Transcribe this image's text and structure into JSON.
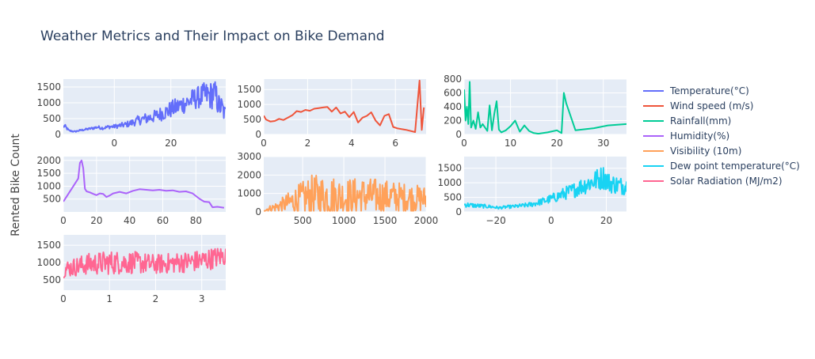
{
  "chart_data": {
    "type": "line",
    "title": "Weather Metrics and Their Impact on Bike Demand",
    "ylabel": "Rented Bike Count",
    "grid": true,
    "legend_placement": "right",
    "colors": {
      "plot_bg": "#e5ecf6",
      "grid": "#ffffff",
      "text": "#2a3f5f",
      "tick_text": "#444444"
    },
    "legend": [
      "Temperature(°C)",
      "Wind speed (m/s)",
      "Rainfall(mm)",
      "Humidity(%)",
      "Visibility (10m)",
      "Dew point temperature(°C)",
      "Solar Radiation (MJ/m2)"
    ],
    "subplots": [
      {
        "name": "Temperature(°C)",
        "color": "#636efa",
        "xlim": [
          -18,
          39.4
        ],
        "ylim": [
          0,
          1750
        ],
        "xticks": [
          0,
          20
        ],
        "yticks": [
          0,
          500,
          1000,
          1500
        ],
        "points": [
          [
            -17.5,
            260
          ],
          [
            -16,
            120
          ],
          [
            -14,
            90
          ],
          [
            -12,
            130
          ],
          [
            -10,
            160
          ],
          [
            -8,
            190
          ],
          [
            -6,
            230
          ],
          [
            -4,
            200
          ],
          [
            -2,
            240
          ],
          [
            0,
            250
          ],
          [
            2,
            280
          ],
          [
            4,
            310
          ],
          [
            6,
            360
          ],
          [
            8,
            430
          ],
          [
            10,
            480
          ],
          [
            12,
            520
          ],
          [
            14,
            560
          ],
          [
            16,
            640
          ],
          [
            18,
            700
          ],
          [
            20,
            790
          ],
          [
            22,
            860
          ],
          [
            24,
            950
          ],
          [
            26,
            1020
          ],
          [
            28,
            1120
          ],
          [
            30,
            1180
          ],
          [
            32,
            1240
          ],
          [
            34,
            1220
          ],
          [
            35,
            1300
          ],
          [
            36,
            1180
          ],
          [
            37,
            900
          ],
          [
            38,
            850
          ],
          [
            39,
            650
          ]
        ],
        "spread": [
          [
            -17.5,
            0.25
          ],
          [
            -10,
            0.2
          ],
          [
            0,
            0.25
          ],
          [
            10,
            0.35
          ],
          [
            20,
            0.35
          ],
          [
            30,
            0.3
          ],
          [
            39,
            0.45
          ]
        ]
      },
      {
        "name": "Wind speed (m/s)",
        "color": "#ef553b",
        "xlim": [
          0,
          7.4
        ],
        "ylim": [
          0,
          1850
        ],
        "xticks": [
          0,
          2,
          4,
          6
        ],
        "yticks": [
          0,
          500,
          1000,
          1500
        ],
        "points": [
          [
            0,
            630
          ],
          [
            0.1,
            500
          ],
          [
            0.3,
            430
          ],
          [
            0.5,
            450
          ],
          [
            0.7,
            520
          ],
          [
            0.9,
            480
          ],
          [
            1.1,
            560
          ],
          [
            1.3,
            640
          ],
          [
            1.5,
            780
          ],
          [
            1.7,
            750
          ],
          [
            1.9,
            820
          ],
          [
            2.1,
            790
          ],
          [
            2.3,
            860
          ],
          [
            2.5,
            880
          ],
          [
            2.7,
            900
          ],
          [
            2.9,
            920
          ],
          [
            3.1,
            760
          ],
          [
            3.3,
            900
          ],
          [
            3.5,
            700
          ],
          [
            3.7,
            760
          ],
          [
            3.9,
            580
          ],
          [
            4.1,
            750
          ],
          [
            4.3,
            400
          ],
          [
            4.5,
            560
          ],
          [
            4.7,
            620
          ],
          [
            4.9,
            740
          ],
          [
            5.1,
            460
          ],
          [
            5.3,
            300
          ],
          [
            5.5,
            620
          ],
          [
            5.7,
            680
          ],
          [
            5.9,
            250
          ],
          [
            6.1,
            200
          ],
          [
            6.5,
            150
          ],
          [
            6.9,
            80
          ],
          [
            7.1,
            1800
          ],
          [
            7.2,
            150
          ],
          [
            7.3,
            900
          ]
        ],
        "spread": [
          [
            0,
            0.06
          ],
          [
            7.3,
            0.06
          ]
        ]
      },
      {
        "name": "Rainfall(mm)",
        "color": "#00cc96",
        "xlim": [
          0,
          35
        ],
        "ylim": [
          0,
          800
        ],
        "xticks": [
          0,
          10,
          20,
          30
        ],
        "yticks": [
          0,
          200,
          400,
          600,
          800
        ],
        "points": [
          [
            0,
            650
          ],
          [
            0.3,
            200
          ],
          [
            0.6,
            400
          ],
          [
            0.9,
            150
          ],
          [
            1.2,
            760
          ],
          [
            1.5,
            100
          ],
          [
            2,
            200
          ],
          [
            2.5,
            80
          ],
          [
            3,
            320
          ],
          [
            3.5,
            100
          ],
          [
            4,
            150
          ],
          [
            5,
            50
          ],
          [
            5.5,
            420
          ],
          [
            6,
            60
          ],
          [
            6.5,
            300
          ],
          [
            7,
            480
          ],
          [
            7.5,
            70
          ],
          [
            8,
            30
          ],
          [
            9,
            60
          ],
          [
            10,
            120
          ],
          [
            11,
            200
          ],
          [
            12,
            40
          ],
          [
            13,
            130
          ],
          [
            14,
            50
          ],
          [
            15,
            20
          ],
          [
            16,
            10
          ],
          [
            18,
            30
          ],
          [
            20,
            60
          ],
          [
            21,
            20
          ],
          [
            21.5,
            600
          ],
          [
            22,
            450
          ],
          [
            24,
            60
          ],
          [
            28,
            90
          ],
          [
            31,
            130
          ],
          [
            35,
            150
          ]
        ],
        "spread": [
          [
            0,
            0
          ],
          [
            35,
            0
          ]
        ]
      },
      {
        "name": "Humidity(%)",
        "color": "#ab63fa",
        "xlim": [
          0,
          98
        ],
        "ylim": [
          0,
          2150
        ],
        "xticks": [
          0,
          20,
          40,
          60,
          80
        ],
        "yticks": [
          500,
          1000,
          1500,
          2000
        ],
        "points": [
          [
            0,
            400
          ],
          [
            3,
            700
          ],
          [
            6,
            1000
          ],
          [
            9,
            1300
          ],
          [
            10,
            1900
          ],
          [
            11,
            2000
          ],
          [
            12,
            1700
          ],
          [
            13,
            900
          ],
          [
            14,
            800
          ],
          [
            16,
            760
          ],
          [
            18,
            700
          ],
          [
            20,
            650
          ],
          [
            22,
            720
          ],
          [
            24,
            700
          ],
          [
            26,
            580
          ],
          [
            28,
            640
          ],
          [
            30,
            720
          ],
          [
            34,
            780
          ],
          [
            38,
            720
          ],
          [
            42,
            820
          ],
          [
            46,
            880
          ],
          [
            50,
            860
          ],
          [
            54,
            840
          ],
          [
            58,
            860
          ],
          [
            62,
            820
          ],
          [
            66,
            840
          ],
          [
            70,
            780
          ],
          [
            74,
            800
          ],
          [
            78,
            720
          ],
          [
            82,
            520
          ],
          [
            85,
            400
          ],
          [
            88,
            380
          ],
          [
            90,
            180
          ],
          [
            93,
            200
          ],
          [
            97,
            160
          ]
        ],
        "spread": [
          [
            0,
            0.05
          ],
          [
            40,
            0.08
          ],
          [
            97,
            0.1
          ]
        ]
      },
      {
        "name": "Visibility (10m)",
        "color": "#ffa15a",
        "xlim": [
          27,
          2000
        ],
        "ylim": [
          0,
          3000
        ],
        "xticks": [
          500,
          1000,
          1500,
          2000
        ],
        "yticks": [
          0,
          1000,
          2000,
          3000
        ],
        "points": [
          [
            27,
            100
          ],
          [
            200,
            300
          ],
          [
            400,
            600
          ],
          [
            600,
            800
          ],
          [
            800,
            850
          ],
          [
            1000,
            800
          ],
          [
            1200,
            850
          ],
          [
            1400,
            850
          ],
          [
            1600,
            800
          ],
          [
            1800,
            750
          ],
          [
            2000,
            700
          ]
        ],
        "spread": [
          [
            27,
            0.8
          ],
          [
            600,
            1.5
          ],
          [
            1200,
            1.2
          ],
          [
            2000,
            1.0
          ]
        ]
      },
      {
        "name": "Dew point temperature(°C)",
        "color": "#19d3f3",
        "xlim": [
          -31.5,
          27.3
        ],
        "ylim": [
          0,
          1900
        ],
        "xticks": [
          -20,
          0,
          20
        ],
        "yticks": [
          0,
          500,
          1000,
          1500
        ],
        "points": [
          [
            -31,
            250
          ],
          [
            -28,
            220
          ],
          [
            -25,
            200
          ],
          [
            -22,
            180
          ],
          [
            -19,
            140
          ],
          [
            -16,
            170
          ],
          [
            -13,
            190
          ],
          [
            -10,
            220
          ],
          [
            -7,
            260
          ],
          [
            -4,
            340
          ],
          [
            -1,
            420
          ],
          [
            2,
            520
          ],
          [
            5,
            640
          ],
          [
            8,
            740
          ],
          [
            11,
            880
          ],
          [
            14,
            1000
          ],
          [
            17,
            1120
          ],
          [
            19,
            1200
          ],
          [
            21,
            1000
          ],
          [
            23,
            950
          ],
          [
            25,
            900
          ],
          [
            27,
            900
          ]
        ],
        "spread": [
          [
            -31,
            0.35
          ],
          [
            -15,
            0.3
          ],
          [
            0,
            0.35
          ],
          [
            15,
            0.35
          ],
          [
            27,
            0.35
          ]
        ]
      },
      {
        "name": "Solar Radiation (MJ/m2)",
        "color": "#ff6692",
        "xlim": [
          0,
          3.52
        ],
        "ylim": [
          200,
          1800
        ],
        "xticks": [
          0,
          1,
          2,
          3
        ],
        "yticks": [
          500,
          1000,
          1500
        ],
        "points": [
          [
            0,
            800
          ],
          [
            0.5,
            950
          ],
          [
            1,
            1000
          ],
          [
            1.5,
            1000
          ],
          [
            2,
            950
          ],
          [
            2.5,
            1000
          ],
          [
            3,
            1050
          ],
          [
            3.5,
            1200
          ]
        ],
        "spread": [
          [
            0,
            0.3
          ],
          [
            1,
            0.35
          ],
          [
            2,
            0.3
          ],
          [
            3,
            0.3
          ],
          [
            3.5,
            0.25
          ]
        ]
      }
    ]
  }
}
